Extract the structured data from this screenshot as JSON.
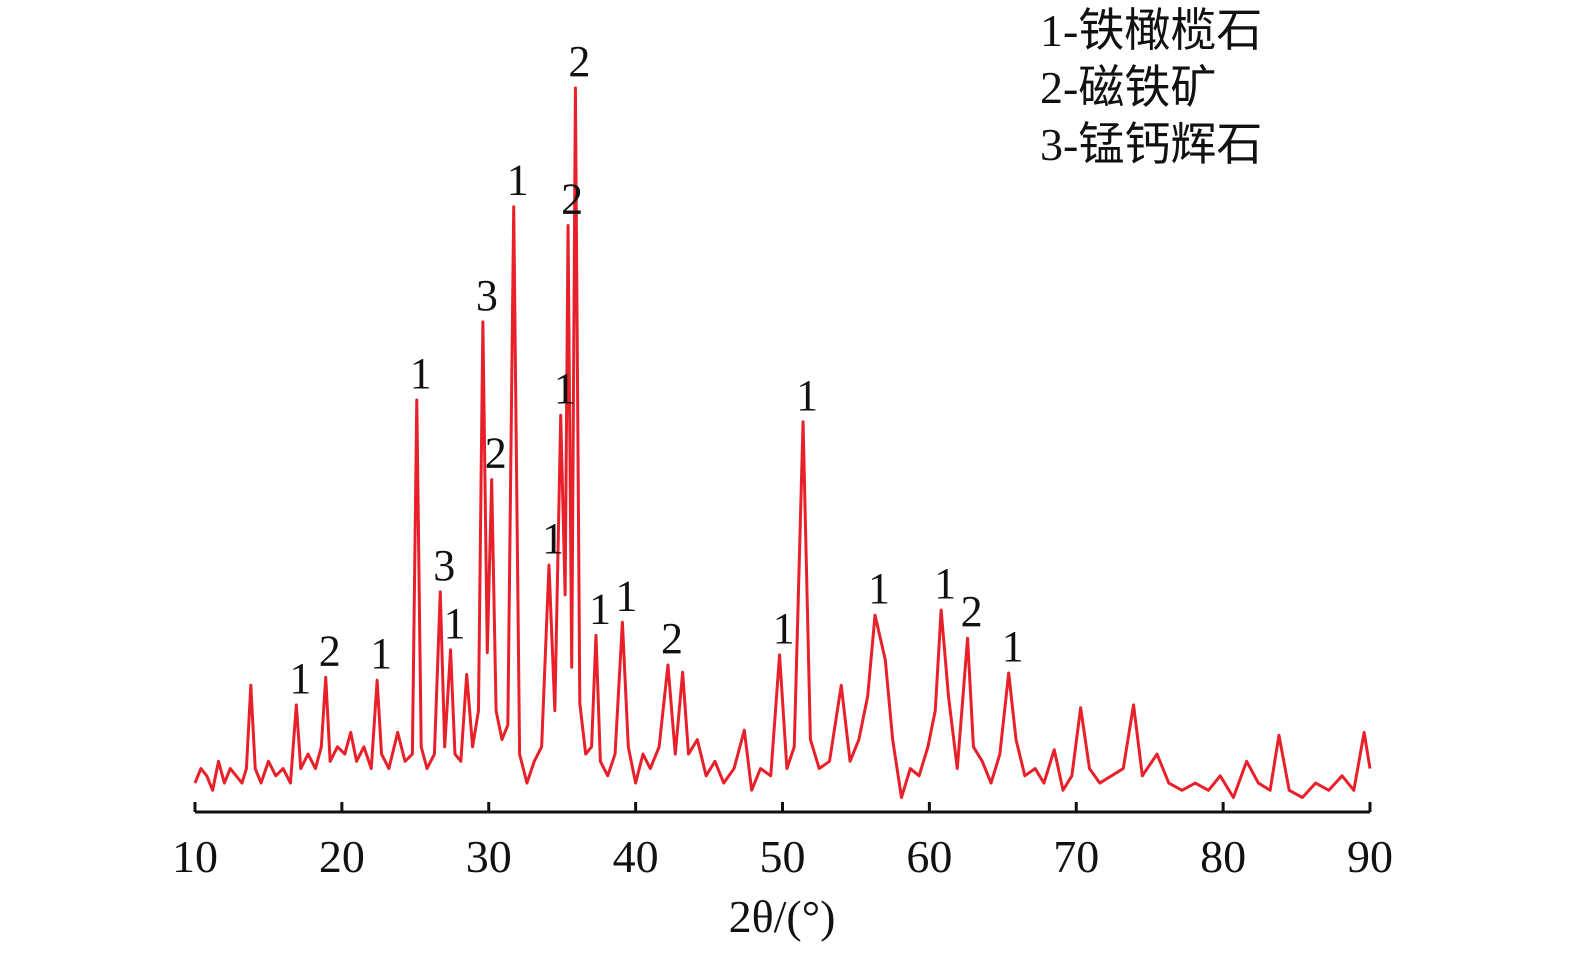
{
  "chart_data": {
    "type": "line",
    "x_label": "2θ/(°)",
    "legend_text": [
      "1-铁橄榄石",
      "2-磁铁矿",
      "3-锰钙辉石"
    ],
    "color": "#e8202a",
    "xlim": [
      10,
      90
    ],
    "xticks": [
      10,
      20,
      30,
      40,
      50,
      60,
      70,
      80,
      90
    ],
    "ylim": [
      0,
      100
    ],
    "x": [
      10,
      10.4,
      10.8,
      11.2,
      11.6,
      12,
      12.4,
      12.8,
      13.2,
      13.5,
      13.8,
      14.1,
      14.5,
      15,
      15.5,
      16,
      16.5,
      16.9,
      17.2,
      17.7,
      18.2,
      18.6,
      18.9,
      19.2,
      19.7,
      20.2,
      20.6,
      21,
      21.5,
      22,
      22.4,
      22.7,
      23.2,
      23.8,
      24.3,
      24.8,
      25.1,
      25.4,
      25.8,
      26.3,
      26.7,
      27,
      27.4,
      27.7,
      28.1,
      28.5,
      28.9,
      29.3,
      29.6,
      29.9,
      30.2,
      30.5,
      30.9,
      31.3,
      31.7,
      32.1,
      32.6,
      33.1,
      33.6,
      34.1,
      34.5,
      34.9,
      35.2,
      35.4,
      35.65,
      35.9,
      36.2,
      36.6,
      37,
      37.3,
      37.6,
      38.1,
      38.6,
      39.1,
      39.5,
      40,
      40.5,
      41,
      41.6,
      42.2,
      42.7,
      43.2,
      43.6,
      44.2,
      44.8,
      45.4,
      46,
      46.7,
      47.4,
      47.9,
      48.5,
      49.2,
      49.8,
      50.3,
      50.8,
      51.4,
      51.9,
      52.5,
      53.2,
      54,
      54.6,
      55.2,
      55.8,
      56.3,
      57,
      57.5,
      58.1,
      58.7,
      59.3,
      59.9,
      60.4,
      60.8,
      61.3,
      61.9,
      62.6,
      63,
      63.6,
      64.2,
      64.8,
      65.4,
      65.9,
      66.5,
      67.2,
      67.8,
      68.5,
      69.1,
      69.7,
      70.3,
      70.9,
      71.6,
      72.4,
      73.2,
      73.9,
      74.5,
      75.5,
      76.3,
      77.2,
      78.1,
      79,
      79.8,
      80.7,
      81.6,
      82.4,
      83.2,
      83.8,
      84.5,
      85.4,
      86.3,
      87.2,
      88.1,
      88.9,
      89.6,
      90
    ],
    "values": [
      4,
      6,
      5,
      3,
      7,
      4,
      6,
      5,
      4,
      6,
      17.5,
      6,
      4,
      7,
      5,
      6,
      4,
      14.8,
      6,
      8,
      6,
      9,
      18.6,
      7,
      9,
      8,
      11,
      7,
      9,
      6,
      18.2,
      8,
      6,
      11,
      7,
      8,
      56.9,
      9,
      6,
      8,
      30.4,
      9,
      22.4,
      8,
      7,
      19,
      9,
      14,
      67.7,
      22,
      45.9,
      14,
      10,
      12,
      83.6,
      8,
      4,
      7,
      9,
      34.1,
      14,
      54.8,
      30,
      81,
      20,
      100,
      15,
      8,
      9,
      24.4,
      7,
      5,
      8,
      26.2,
      9,
      4,
      8,
      6,
      9,
      20.3,
      8,
      19.3,
      8,
      10,
      5,
      7,
      4,
      6,
      11.3,
      3,
      6,
      5,
      21.7,
      6,
      9,
      53.9,
      10,
      6,
      7,
      17.5,
      7,
      10,
      16,
      27.2,
      21,
      10,
      2,
      6,
      5,
      9,
      14,
      27.9,
      16,
      6,
      24,
      9,
      7,
      4,
      8,
      19.2,
      10,
      5,
      6,
      4,
      8.6,
      3,
      5,
      14.4,
      6,
      4,
      5,
      6,
      14.8,
      5,
      8,
      4,
      3,
      4,
      3,
      5,
      2,
      7,
      4,
      3,
      10.6,
      3,
      2,
      4,
      3,
      5,
      3,
      11,
      6
    ],
    "peak_labels": [
      {
        "text": "1",
        "x": 16.9
      },
      {
        "text": "2",
        "x": 18.9
      },
      {
        "text": "1",
        "x": 22.4
      },
      {
        "text": "1",
        "x": 25.1
      },
      {
        "text": "3",
        "x": 26.7
      },
      {
        "text": "1",
        "x": 27.4
      },
      {
        "text": "3",
        "x": 29.6
      },
      {
        "text": "2",
        "x": 30.2
      },
      {
        "text": "1",
        "x": 31.7
      },
      {
        "text": "1",
        "x": 34.1
      },
      {
        "text": "1",
        "x": 34.9
      },
      {
        "text": "2",
        "x": 35.4
      },
      {
        "text": "2",
        "x": 35.9
      },
      {
        "text": "1",
        "x": 37.3
      },
      {
        "text": "1",
        "x": 39.1
      },
      {
        "text": "2",
        "x": 42.2
      },
      {
        "text": "1",
        "x": 49.8
      },
      {
        "text": "1",
        "x": 51.4
      },
      {
        "text": "1",
        "x": 56.3
      },
      {
        "text": "1",
        "x": 60.8
      },
      {
        "text": "2",
        "x": 62.6
      },
      {
        "text": "1",
        "x": 65.4
      }
    ]
  }
}
